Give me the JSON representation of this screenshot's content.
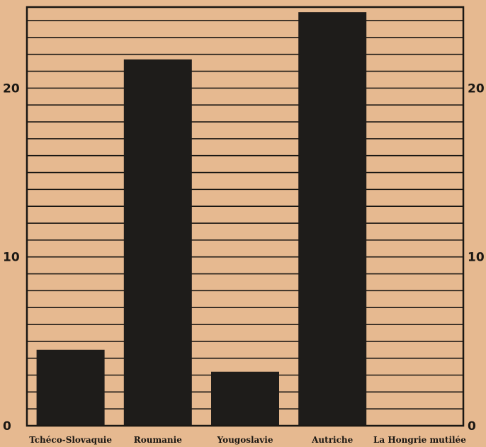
{
  "chart_data": {
    "type": "bar",
    "categories": [
      "Tchéco-Slovaquie",
      "Roumanie",
      "Yougoslavie",
      "Autriche",
      "La Hongrie mutilée"
    ],
    "values": [
      4.5,
      21.7,
      3.2,
      24.5,
      0
    ],
    "ylim": [
      0,
      24.8
    ],
    "yticks": [
      0,
      10,
      20
    ],
    "grid_step": 1,
    "grid": true,
    "title": "",
    "xlabel": "",
    "ylabel": "",
    "colors": {
      "bar": "#1e1c1a",
      "background": "#e6b990",
      "grid": "#1a1713"
    }
  }
}
